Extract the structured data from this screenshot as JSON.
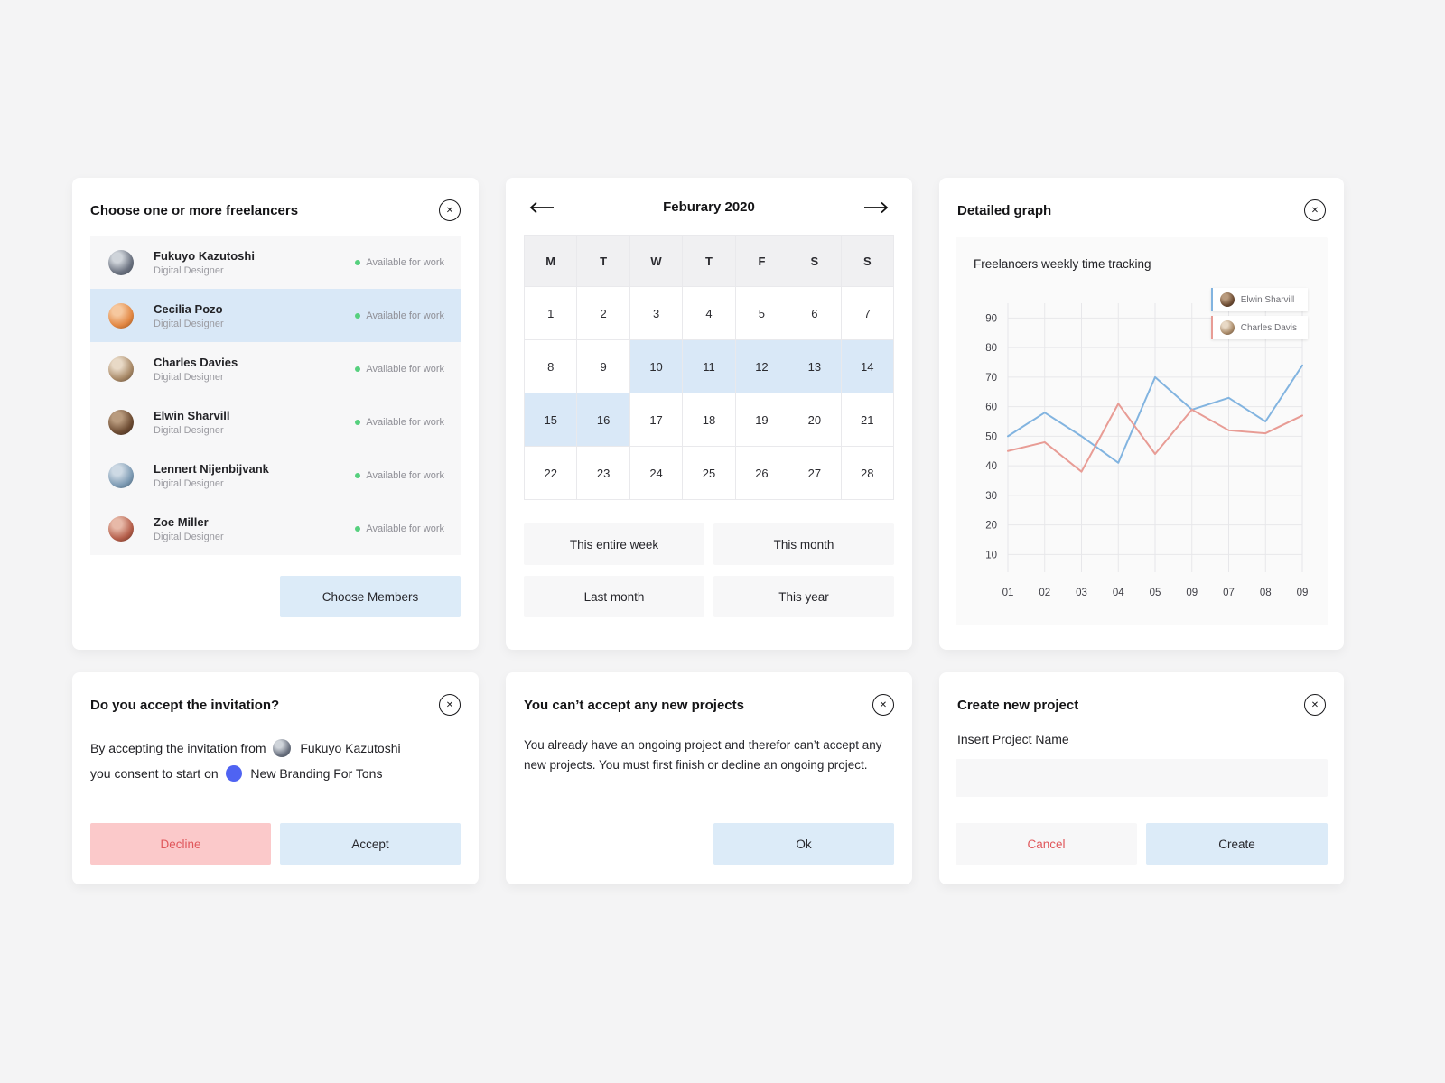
{
  "colors": {
    "accent_blue": "#dcebf8",
    "selected_row_blue": "#d9e8f7",
    "decline_bg": "#fbc9ca",
    "decline_text": "#e0575b",
    "cancel_text": "#e0575b",
    "status_green": "#56d07e",
    "project_dot_blue": "#4f63f2"
  },
  "freelancer_picker": {
    "title": "Choose one or more freelancers",
    "people": [
      {
        "name": "Fukuyo Kazutoshi",
        "role": "Digital Designer",
        "status": "Available for work",
        "selected": false
      },
      {
        "name": "Cecilia Pozo",
        "role": "Digital Designer",
        "status": "Available for work",
        "selected": true
      },
      {
        "name": "Charles Davies",
        "role": "Digital Designer",
        "status": "Available for work",
        "selected": false
      },
      {
        "name": "Elwin Sharvill",
        "role": "Digital Designer",
        "status": "Available for work",
        "selected": false
      },
      {
        "name": "Lennert Nijenbijvank",
        "role": "Digital Designer",
        "status": "Available for work",
        "selected": false
      },
      {
        "name": "Zoe Miller",
        "role": "Digital Designer",
        "status": "Available for work",
        "selected": false
      }
    ],
    "choose_button": "Choose Members"
  },
  "calendar": {
    "title": "Feburary 2020",
    "day_headers": [
      "M",
      "T",
      "W",
      "T",
      "F",
      "S",
      "S"
    ],
    "weeks": [
      [
        1,
        2,
        3,
        4,
        5,
        6,
        7
      ],
      [
        8,
        9,
        10,
        11,
        12,
        13,
        14
      ],
      [
        15,
        16,
        17,
        18,
        19,
        20,
        21
      ],
      [
        22,
        23,
        24,
        25,
        26,
        27,
        28
      ]
    ],
    "highlighted_days": [
      10,
      11,
      12,
      13,
      14,
      15,
      16
    ],
    "quick_buttons": [
      "This entire week",
      "This month",
      "Last month",
      "This year"
    ]
  },
  "graph": {
    "title": "Detailed graph"
  },
  "chart_data": {
    "type": "line",
    "title": "Freelancers weekly time tracking",
    "x": [
      "01",
      "02",
      "03",
      "04",
      "05",
      "09",
      "07",
      "08",
      "09"
    ],
    "yticks": [
      90,
      80,
      70,
      60,
      50,
      40,
      30,
      20,
      10
    ],
    "ylim": [
      4,
      95
    ],
    "grid": true,
    "legend_position": "top-right",
    "series": [
      {
        "name": "Elwin Sharvill",
        "color": "#82b4e0",
        "values": [
          50,
          58,
          50,
          41,
          70,
          59,
          63,
          55,
          74
        ]
      },
      {
        "name": "Charles Davis",
        "color": "#e89c95",
        "values": [
          45,
          48,
          38,
          61,
          44,
          59,
          52,
          51,
          57
        ]
      }
    ]
  },
  "invitation": {
    "title": "Do you accept the invitation?",
    "body_prefix": "By accepting the invitation from",
    "inviter": "Fukuyo Kazutoshi",
    "body_middle": "you consent to start on",
    "project": "New Branding For Tons",
    "decline_label": "Decline",
    "accept_label": "Accept"
  },
  "warning": {
    "title": "You can’t accept any new projects",
    "body": "You already have an ongoing project and therefor can’t accept any new projects. You must first finish or decline an ongoing project.",
    "ok_label": "Ok"
  },
  "create_project": {
    "title": "Create new project",
    "input_label": "Insert Project Name",
    "input_value": "",
    "cancel_label": "Cancel",
    "create_label": "Create"
  }
}
